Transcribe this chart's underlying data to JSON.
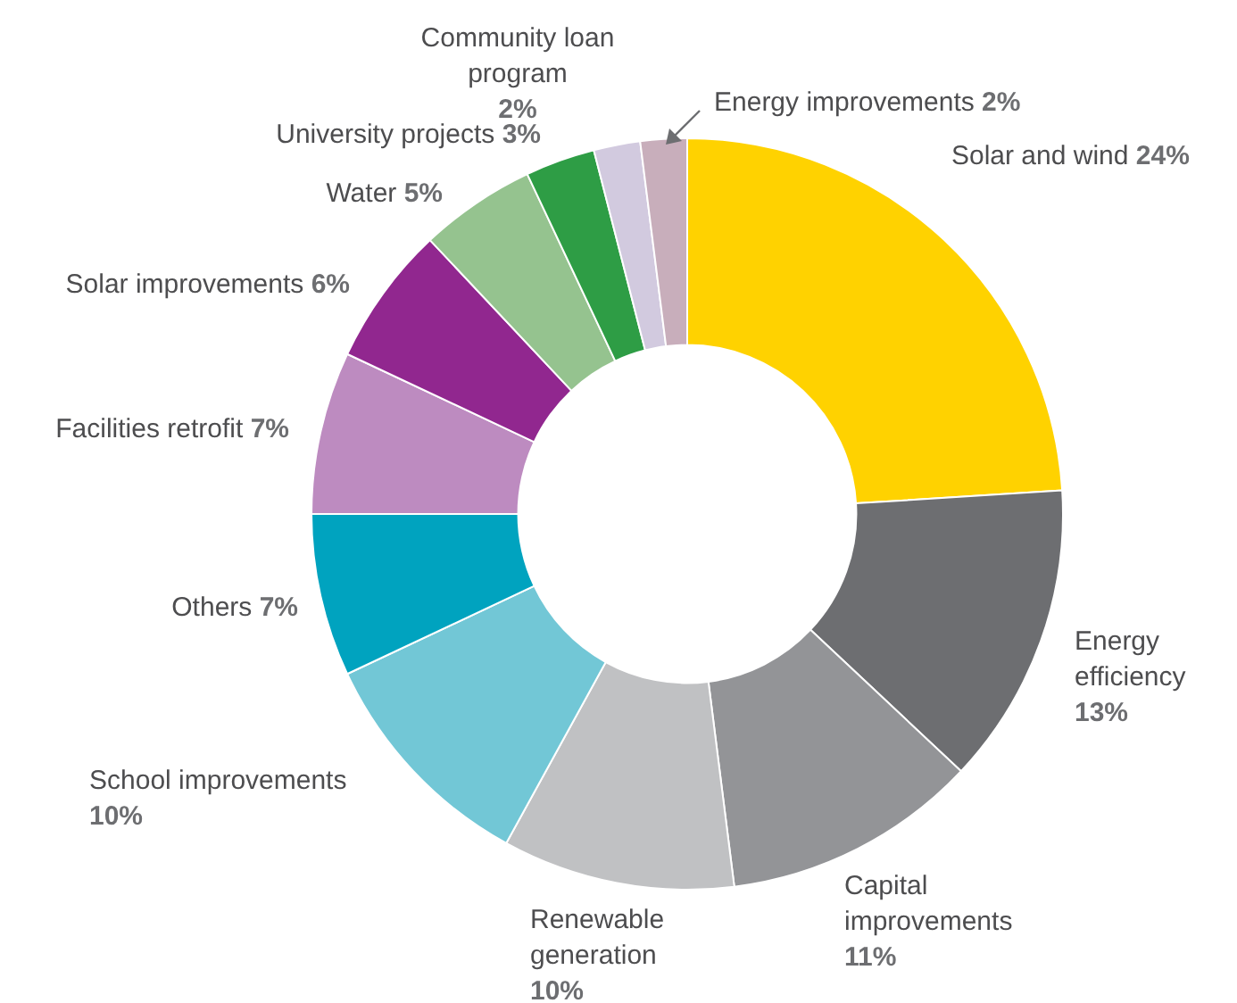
{
  "chart_data": {
    "type": "donut",
    "categories": [
      "Solar and wind",
      "Energy efficiency",
      "Capital improvements",
      "Renewable generation",
      "School improvements",
      "Others",
      "Facilities retrofit",
      "Solar improvements",
      "Water",
      "University projects",
      "Community loan program",
      "Energy improvements"
    ],
    "values": [
      24,
      13,
      11,
      10,
      10,
      7,
      7,
      6,
      5,
      3,
      2,
      2
    ],
    "value_labels": [
      "24%",
      "13%",
      "11%",
      "10%",
      "10%",
      "7%",
      "7%",
      "6%",
      "5%",
      "3%",
      "2%",
      "2%"
    ],
    "colors": [
      "#ffd200",
      "#6d6e71",
      "#939497",
      "#c0c1c3",
      "#72c7d6",
      "#00a3bf",
      "#bd8bc0",
      "#91278f",
      "#95c38f",
      "#2e9d45",
      "#d2cadf",
      "#c8aebb"
    ],
    "legend": false
  }
}
